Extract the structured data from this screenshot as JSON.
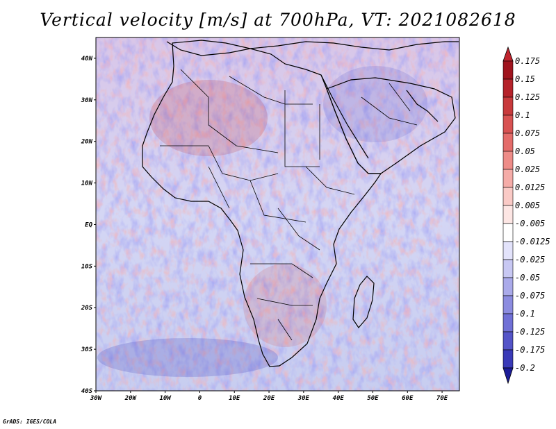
{
  "title": "Vertical velocity [m/s] at 700hPa, VT: 2021082618",
  "credit": "GrADS: IGES/COLA",
  "map": {
    "lon_range": [
      -30,
      75
    ],
    "lat_range": [
      -40,
      45
    ],
    "lon_ticks": [
      {
        "value": -30,
        "label": "30W"
      },
      {
        "value": -20,
        "label": "20W"
      },
      {
        "value": -10,
        "label": "10W"
      },
      {
        "value": 0,
        "label": "0"
      },
      {
        "value": 10,
        "label": "10E"
      },
      {
        "value": 20,
        "label": "20E"
      },
      {
        "value": 30,
        "label": "30E"
      },
      {
        "value": 40,
        "label": "40E"
      },
      {
        "value": 50,
        "label": "50E"
      },
      {
        "value": 60,
        "label": "60E"
      },
      {
        "value": 70,
        "label": "70E"
      }
    ],
    "lat_ticks": [
      {
        "value": 40,
        "label": "40N"
      },
      {
        "value": 30,
        "label": "30N"
      },
      {
        "value": 20,
        "label": "20N"
      },
      {
        "value": 10,
        "label": "10N"
      },
      {
        "value": 0,
        "label": "EQ"
      },
      {
        "value": -10,
        "label": "10S"
      },
      {
        "value": -20,
        "label": "20S"
      },
      {
        "value": -30,
        "label": "30S"
      },
      {
        "value": -40,
        "label": "40S"
      }
    ]
  },
  "colorbar": {
    "levels": [
      {
        "label": "0.175",
        "color": "#a0141e"
      },
      {
        "label": "0.15",
        "color": "#b5222a"
      },
      {
        "label": "0.125",
        "color": "#c83a3c"
      },
      {
        "label": "0.1",
        "color": "#d85252"
      },
      {
        "label": "0.075",
        "color": "#e46c6a"
      },
      {
        "label": "0.05",
        "color": "#ee8c88"
      },
      {
        "label": "0.025",
        "color": "#f5aca8"
      },
      {
        "label": "0.0125",
        "color": "#facac6"
      },
      {
        "label": "0.005",
        "color": "#fde6e4"
      },
      {
        "label": "-0.005",
        "color": "#ffffff"
      },
      {
        "label": "-0.0125",
        "color": "#e3e3fb"
      },
      {
        "label": "-0.025",
        "color": "#c8c8f3"
      },
      {
        "label": "-0.05",
        "color": "#aaaaea"
      },
      {
        "label": "-0.075",
        "color": "#8c8ce0"
      },
      {
        "label": "-0.1",
        "color": "#7070d6"
      },
      {
        "label": "-0.125",
        "color": "#5454c8"
      },
      {
        "label": "-0.175",
        "color": "#3a3ab8"
      },
      {
        "label": "-0.2",
        "color": "#2424a4"
      }
    ],
    "top_color": "#c0242e",
    "bottom_color": "#1c1c98"
  }
}
